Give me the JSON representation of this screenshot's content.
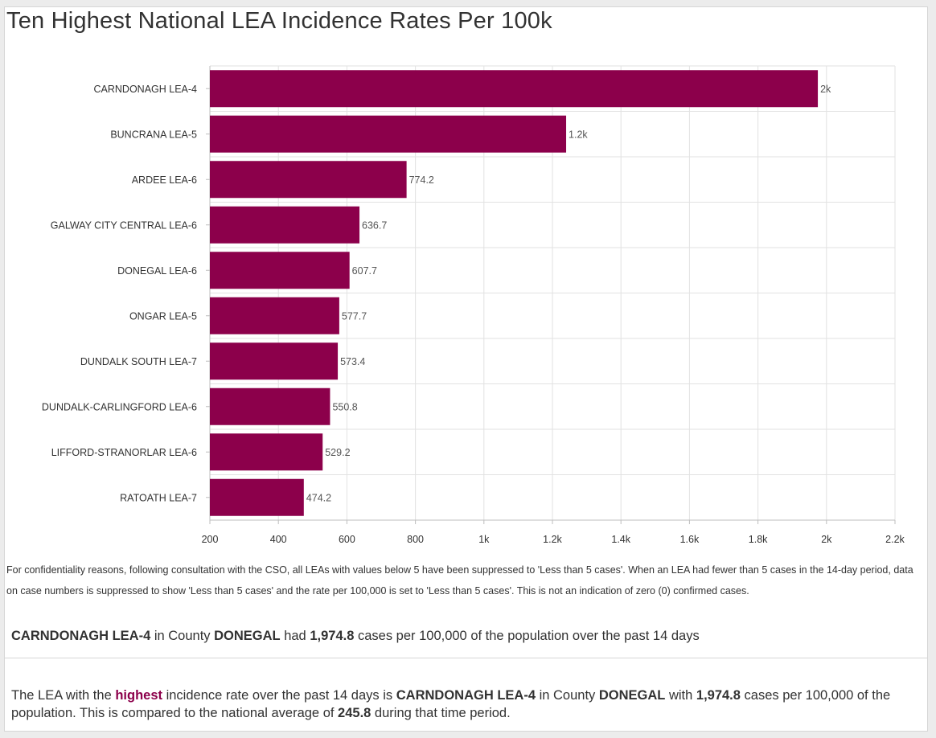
{
  "title": "Ten Highest National LEA Incidence Rates Per 100k",
  "colors": {
    "bar": "#8c004b",
    "grid": "#e2e2e2",
    "axis": "#bdbdbd",
    "text": "#323232"
  },
  "chart_data": {
    "type": "bar",
    "orientation": "horizontal",
    "categories": [
      "CARNDONAGH LEA-4",
      "BUNCRANA LEA-5",
      "ARDEE LEA-6",
      "GALWAY CITY CENTRAL LEA-6",
      "DONEGAL LEA-6",
      "ONGAR LEA-5",
      "DUNDALK SOUTH LEA-7",
      "DUNDALK-CARLINGFORD LEA-6",
      "LIFFORD-STRANORLAR LEA-6",
      "RATOATH LEA-7"
    ],
    "values": [
      1974.8,
      1240,
      774.2,
      636.7,
      607.7,
      577.7,
      573.4,
      550.8,
      529.2,
      474.2
    ],
    "data_labels": [
      "2k",
      "1.2k",
      "774.2",
      "636.7",
      "607.7",
      "577.7",
      "573.4",
      "550.8",
      "529.2",
      "474.2"
    ],
    "xlim": [
      200,
      2200
    ],
    "x_ticks": [
      200,
      400,
      600,
      800,
      1000,
      1200,
      1400,
      1600,
      1800,
      2000,
      2200
    ],
    "x_tick_labels": [
      "200",
      "400",
      "600",
      "800",
      "1k",
      "1.2k",
      "1.4k",
      "1.6k",
      "1.8k",
      "2k",
      "2.2k"
    ],
    "grid": true,
    "legend": "none"
  },
  "note": "For confidentiality reasons, following consultation with the CSO, all LEAs with values below 5 have been suppressed to 'Less than 5 cases'. When an LEA had fewer than 5 cases in the 14-day period, data on case numbers is suppressed to show 'Less than 5 cases' and the rate per 100,000 is set to 'Less than 5 cases'. This is not an indication of zero (0) confirmed cases.",
  "summary": {
    "lea": "CARNDONAGH LEA-4",
    "t1": " in County ",
    "county": "DONEGAL",
    "t2": " had ",
    "rate": "1,974.8",
    "t3": " cases per 100,000 of the population over the past 14 days"
  },
  "highlight": {
    "t1": "The LEA with the ",
    "word": "highest",
    "t2": " incidence rate over the past 14 days is ",
    "lea": "CARNDONAGH LEA-4",
    "t3": " in County ",
    "county": "DONEGAL",
    "t4": " with ",
    "rate": "1,974.8",
    "t5": " cases per 100,000 of the population. This is compared to the national average of ",
    "national": "245.8",
    "t6": " during that time period."
  }
}
